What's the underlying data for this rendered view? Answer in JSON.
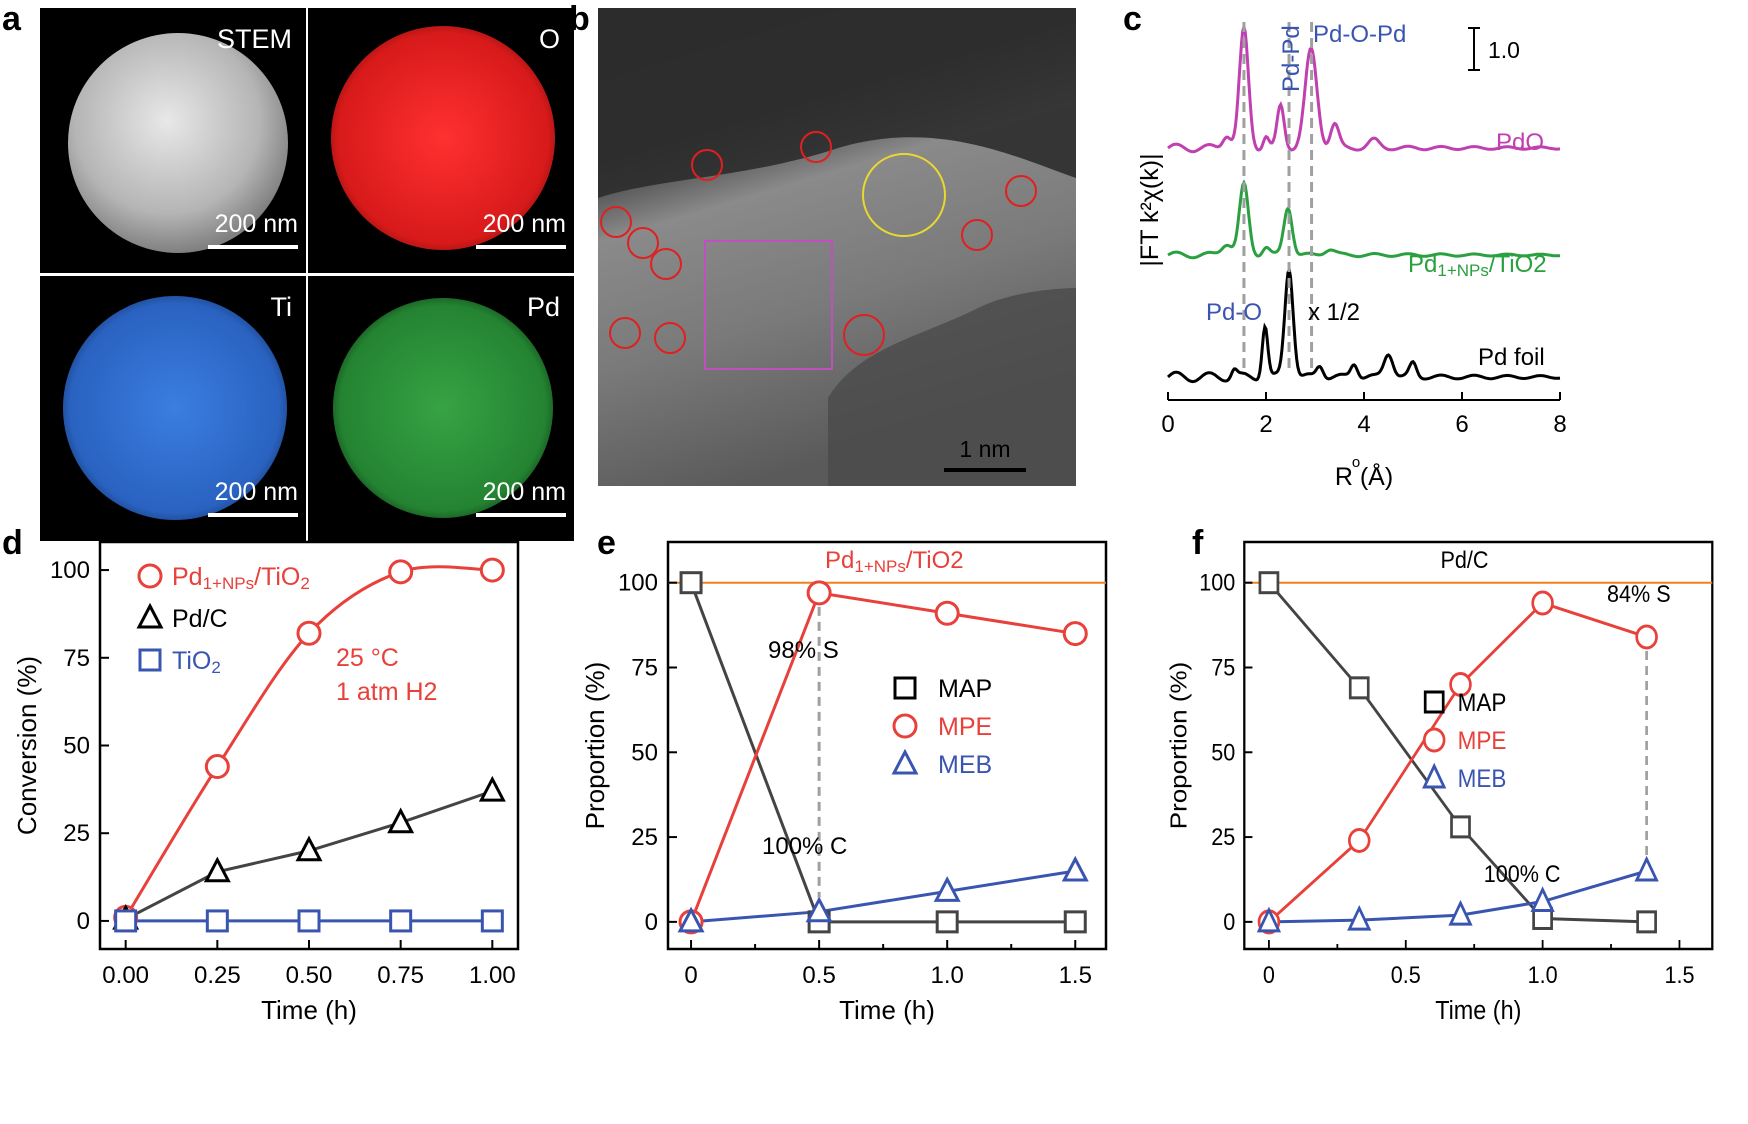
{
  "panel_letters": [
    "a",
    "b",
    "c",
    "d",
    "e",
    "f"
  ],
  "panel_a": {
    "tiles": [
      {
        "label": "STEM",
        "scale": "200 nm",
        "color": "#d8d8d8"
      },
      {
        "label": "O",
        "scale": "200 nm",
        "color": "#e02020"
      },
      {
        "label": "Ti",
        "scale": "200 nm",
        "color": "#2f6fd6"
      },
      {
        "label": "Pd",
        "scale": "200 nm",
        "color": "#2fb040"
      }
    ]
  },
  "panel_b": {
    "scale": "1 nm"
  },
  "panel_c": {
    "xlabel": "R (Å)",
    "ylabel": "|FT k²χ(k)|",
    "scale_bar": "1.0",
    "peak_labels": [
      "Pd-O",
      "Pd-Pd",
      "Pd-O-Pd"
    ],
    "curve_labels": {
      "pdo": "PdO",
      "cat_main": "Pd",
      "cat_sub": "1+NPs",
      "cat_tail": "/TiO2",
      "foil": "Pd foil"
    },
    "half_label": "x 1/2",
    "xticks": [
      "0",
      "2",
      "4",
      "6",
      "8"
    ]
  },
  "chart_data": [
    {
      "type": "line",
      "panel": "d",
      "xlabel": "Time (h)",
      "ylabel": "Conversion (%)",
      "xlim": [
        -0.07,
        1.07
      ],
      "ylim": [
        -8,
        108
      ],
      "xticks": [
        "0.00",
        "0.25",
        "0.50",
        "0.75",
        "1.00"
      ],
      "yticks": [
        "0",
        "25",
        "50",
        "75",
        "100"
      ],
      "x": [
        0,
        0.25,
        0.5,
        0.75,
        1.0
      ],
      "series": [
        {
          "name": "Pd1+NPs/TiO2",
          "values": [
            1,
            44,
            82,
            99.5,
            100
          ],
          "color": "#e8403a",
          "marker": "circle"
        },
        {
          "name": "Pd/C",
          "values": [
            0.5,
            14,
            20,
            28,
            37
          ],
          "color": "#000000",
          "marker": "triangle"
        },
        {
          "name": "TiO2",
          "values": [
            0,
            0,
            0,
            0,
            0
          ],
          "color": "#3a55b0",
          "marker": "square"
        }
      ],
      "legend": [
        {
          "main": "Pd",
          "sub": "1+NPs",
          "tail": "/TiO",
          "sub2": "2",
          "color": "#e8403a"
        },
        {
          "main": "Pd/C",
          "sub": "",
          "tail": "",
          "sub2": "",
          "color": "#000000"
        },
        {
          "main": "TiO",
          "sub": "",
          "tail": "",
          "sub2": "2",
          "color": "#3a55b0"
        }
      ],
      "annotations": [
        "25 °C",
        "1 atm H2"
      ]
    },
    {
      "type": "line",
      "panel": "e",
      "title": "Pd1+NPs/TiO2",
      "xlabel": "Time (h)",
      "ylabel": "Proportion (%)",
      "xlim": [
        -0.09,
        1.62
      ],
      "ylim": [
        -8,
        112
      ],
      "xticks": [
        "0",
        "0.5",
        "1.0",
        "1.5"
      ],
      "yticks": [
        "0",
        "25",
        "50",
        "75",
        "100"
      ],
      "x": [
        0,
        0.5,
        1.0,
        1.5
      ],
      "series": [
        {
          "name": "MAP",
          "values": [
            100,
            0,
            0,
            0
          ],
          "color": "#444444",
          "marker": "square"
        },
        {
          "name": "MPE",
          "values": [
            0,
            97,
            91,
            85
          ],
          "color": "#e8403a",
          "marker": "circle"
        },
        {
          "name": "MEB",
          "values": [
            0,
            3,
            9,
            15
          ],
          "color": "#3a55b0",
          "marker": "triangle"
        }
      ],
      "annotations": [
        "98% S",
        "100% C"
      ]
    },
    {
      "type": "line",
      "panel": "f",
      "title": "Pd/C",
      "xlabel": "Time (h)",
      "ylabel": "Proportion (%)",
      "xlim": [
        -0.09,
        1.62
      ],
      "ylim": [
        -8,
        112
      ],
      "xticks": [
        "0",
        "0.5",
        "1.0",
        "1.5"
      ],
      "yticks": [
        "0",
        "25",
        "50",
        "75",
        "100"
      ],
      "x": [
        0,
        0.33,
        0.7,
        1.0,
        1.38
      ],
      "series": [
        {
          "name": "MAP",
          "values": [
            100,
            69,
            28,
            1,
            0
          ],
          "color": "#444444",
          "marker": "square"
        },
        {
          "name": "MPE",
          "values": [
            0,
            24,
            70,
            94,
            84
          ],
          "color": "#e8403a",
          "marker": "circle"
        },
        {
          "name": "MEB",
          "values": [
            0,
            0.5,
            2,
            6,
            15
          ],
          "color": "#3a55b0",
          "marker": "triangle"
        }
      ],
      "annotations": [
        "84% S",
        "100% C"
      ]
    }
  ]
}
